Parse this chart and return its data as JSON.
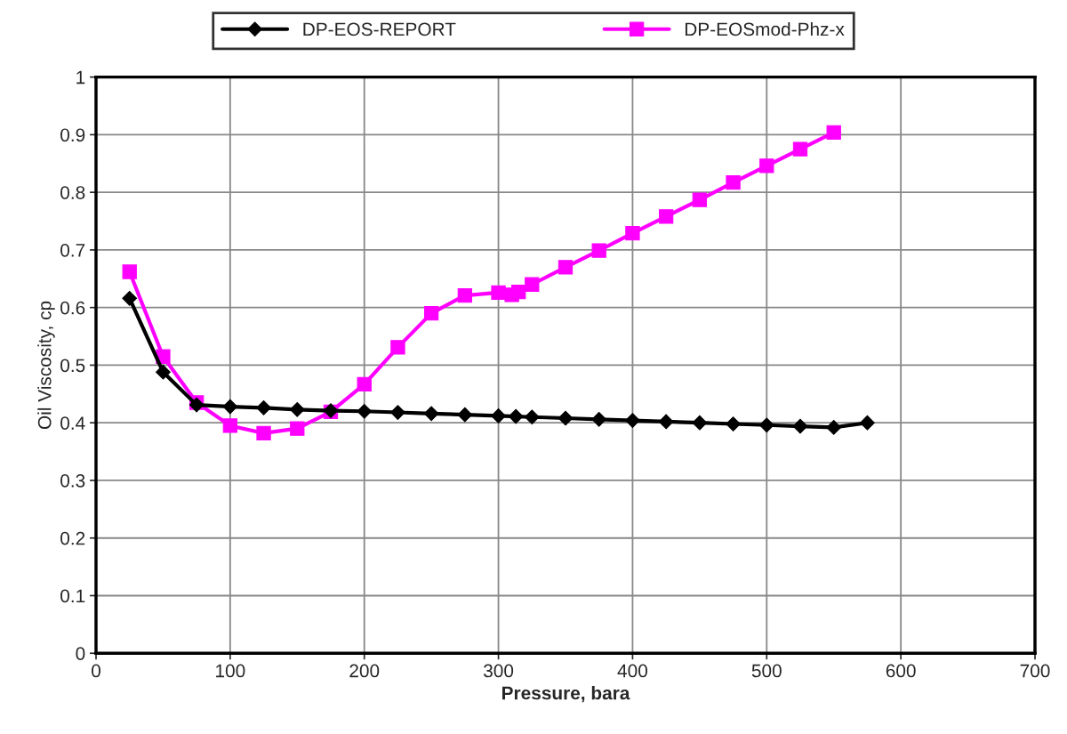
{
  "chart_data": {
    "type": "line",
    "xlabel": "Pressure, bara",
    "ylabel": "Oil Viscosity, cp",
    "xlim": [
      0,
      700
    ],
    "xticks": [
      0,
      100,
      200,
      300,
      400,
      500,
      600,
      700
    ],
    "ylim": [
      0,
      1
    ],
    "yticks": [
      0,
      0.1,
      0.2,
      0.3,
      0.4,
      0.5,
      0.6,
      0.7,
      0.8,
      0.9,
      1
    ],
    "grid": true,
    "legend": "top",
    "line_style": "solid",
    "series": [
      {
        "name": "DP-EOS-REPORT",
        "color": "#000000",
        "marker": "diamond",
        "x": [
          25,
          50,
          75,
          100,
          125,
          150,
          175,
          200,
          225,
          250,
          275,
          300,
          313,
          325,
          350,
          375,
          400,
          425,
          450,
          475,
          500,
          525,
          550,
          575
        ],
        "values": [
          0.616,
          0.488,
          0.431,
          0.428,
          0.426,
          0.423,
          0.421,
          0.42,
          0.418,
          0.416,
          0.414,
          0.412,
          0.411,
          0.41,
          0.408,
          0.406,
          0.404,
          0.402,
          0.4,
          0.398,
          0.396,
          0.394,
          0.392,
          0.4
        ]
      },
      {
        "name": "DP-EOSmod-Phz-x",
        "color": "#ff00ff",
        "marker": "square",
        "x": [
          25,
          50,
          75,
          100,
          125,
          150,
          175,
          200,
          225,
          250,
          275,
          300,
          310,
          315,
          325,
          350,
          375,
          400,
          425,
          450,
          475,
          500,
          525,
          550
        ],
        "values": [
          0.662,
          0.515,
          0.435,
          0.395,
          0.382,
          0.39,
          0.419,
          0.467,
          0.531,
          0.59,
          0.621,
          0.626,
          0.622,
          0.627,
          0.64,
          0.67,
          0.699,
          0.729,
          0.758,
          0.787,
          0.817,
          0.846,
          0.875,
          0.904
        ]
      }
    ]
  }
}
